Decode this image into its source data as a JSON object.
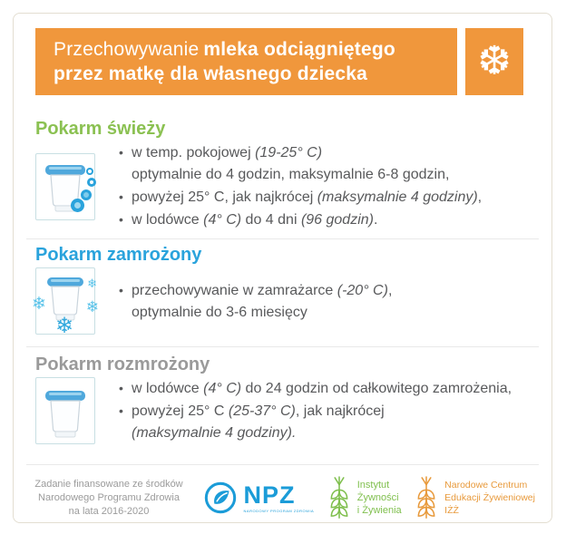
{
  "colors": {
    "accent_orange": "#F0973C",
    "fresh_green": "#8BC152",
    "frozen_blue": "#2AA3DC",
    "thawed_gray": "#9A9A9A",
    "body_text": "#58595B",
    "card_border": "#E3DED1",
    "npz_blue": "#1B9CD8",
    "izz_green": "#7FBF4D",
    "ncez_orange": "#E89A3C"
  },
  "header": {
    "title_light": "Przechowywanie",
    "title_bold": "mleka odciągniętego",
    "title_line2": "przez matkę dla własnego dziecka",
    "snowflake_icon": "❆"
  },
  "sections": [
    {
      "heading": "Pokarm świeży",
      "heading_color": "#8BC152",
      "icon": "milk-container-with-drops-icon",
      "lines": [
        {
          "bullet": true,
          "segments": [
            [
              "w temp. pokojowej ",
              false
            ],
            [
              "(19-25° C)",
              true
            ]
          ]
        },
        {
          "bullet": false,
          "segments": [
            [
              "optymalnie do 4 godzin, maksymalnie 6-8 godzin,",
              false
            ]
          ]
        },
        {
          "bullet": true,
          "segments": [
            [
              "powyżej 25° C, jak najkrócej ",
              false
            ],
            [
              "(maksymalnie 4 godziny)",
              true
            ],
            [
              ",",
              false
            ]
          ]
        },
        {
          "bullet": true,
          "segments": [
            [
              "w lodówce ",
              false
            ],
            [
              "(4° C)",
              true
            ],
            [
              " do 4 dni ",
              false
            ],
            [
              "(96 godzin)",
              true
            ],
            [
              ".",
              false
            ]
          ]
        }
      ]
    },
    {
      "heading": "Pokarm zamrożony",
      "heading_color": "#2AA3DC",
      "icon": "milk-container-frozen-icon",
      "lines": [
        {
          "bullet": true,
          "segments": [
            [
              "przechowywanie w zamrażarce ",
              false
            ],
            [
              "(-20° C)",
              true
            ],
            [
              ",",
              false
            ]
          ]
        },
        {
          "bullet": false,
          "segments": [
            [
              "optymalnie do 3-6 miesięcy",
              false
            ]
          ]
        }
      ]
    },
    {
      "heading": "Pokarm rozmrożony",
      "heading_color": "#9A9A9A",
      "icon": "milk-container-icon",
      "lines": [
        {
          "bullet": true,
          "segments": [
            [
              "w lodówce ",
              false
            ],
            [
              "(4° C)",
              true
            ],
            [
              " do 24 godzin od całkowitego zamrożenia,",
              false
            ]
          ]
        },
        {
          "bullet": true,
          "segments": [
            [
              "powyżej 25° C ",
              false
            ],
            [
              "(25-37° C)",
              true
            ],
            [
              ", jak najkrócej",
              false
            ]
          ]
        },
        {
          "bullet": false,
          "segments": [
            [
              "(maksymalnie 4 godziny).",
              true
            ]
          ]
        }
      ]
    }
  ],
  "footer": {
    "funding_lines": [
      "Zadanie finansowane ze środków",
      "Narodowego Programu Zdrowia",
      "na lata 2016-2020"
    ],
    "npz": {
      "label": "NPZ",
      "sublabel": "NARODOWY PROGRAM ZDROWIA"
    },
    "izz": {
      "lines": [
        "Instytut",
        "Żywności",
        "i Żywienia"
      ]
    },
    "ncez": {
      "lines": [
        "Narodowe Centrum",
        "Edukacji Żywieniowej",
        "IŻŻ"
      ]
    }
  }
}
